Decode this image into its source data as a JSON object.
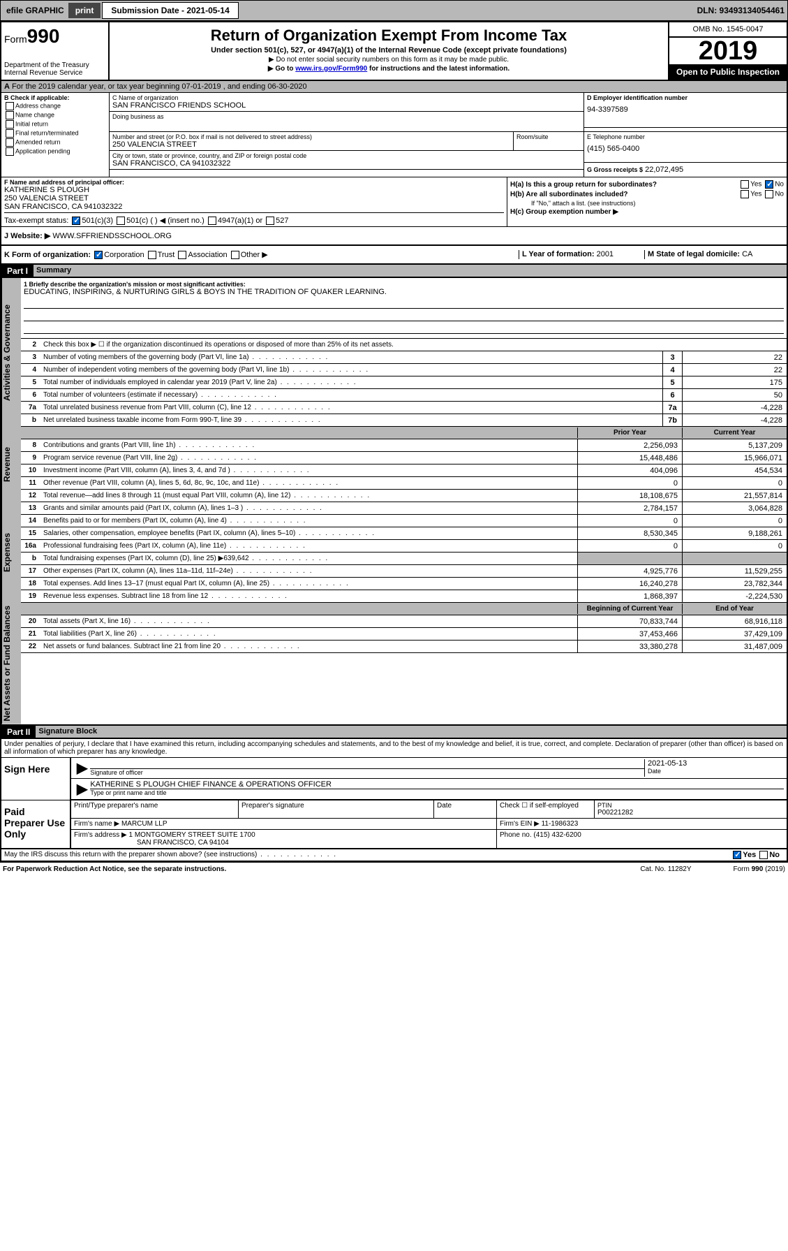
{
  "topbar": {
    "efile": "efile GRAPHIC",
    "print": "print",
    "subdate_label": "Submission Date - 2021-05-14",
    "dln": "DLN: 93493134054461"
  },
  "header": {
    "form_prefix": "Form",
    "form_number": "990",
    "dept": "Department of the Treasury",
    "irs": "Internal Revenue Service",
    "title": "Return of Organization Exempt From Income Tax",
    "subtitle": "Under section 501(c), 527, or 4947(a)(1) of the Internal Revenue Code (except private foundations)",
    "note1": "▶ Do not enter social security numbers on this form as it may be made public.",
    "note2_pre": "▶ Go to ",
    "note2_link": "www.irs.gov/Form990",
    "note2_post": " for instructions and the latest information.",
    "omb": "OMB No. 1545-0047",
    "year": "2019",
    "open": "Open to Public Inspection"
  },
  "taxyear": "For the 2019 calendar year, or tax year beginning 07-01-2019    , and ending 06-30-2020",
  "sectB": {
    "label": "B Check if applicable:",
    "items": [
      "Address change",
      "Name change",
      "Initial return",
      "Final return/terminated",
      "Amended return",
      "Application pending"
    ]
  },
  "sectC": {
    "name_label": "C Name of organization",
    "name": "SAN FRANCISCO FRIENDS SCHOOL",
    "dba_label": "Doing business as",
    "street_label": "Number and street (or P.O. box if mail is not delivered to street address)",
    "room_label": "Room/suite",
    "street": "250 VALENCIA STREET",
    "city_label": "City or town, state or province, country, and ZIP or foreign postal code",
    "city": "SAN FRANCISCO, CA  941032322"
  },
  "sectD": {
    "label": "D Employer identification number",
    "ein": "94-3397589"
  },
  "sectE": {
    "label": "E Telephone number",
    "tel": "(415) 565-0400"
  },
  "sectG": {
    "label": "G Gross receipts $",
    "amt": "22,072,495"
  },
  "sectF": {
    "label": "F  Name and address of principal officer:",
    "name": "KATHERINE S PLOUGH",
    "street": "250 VALENCIA STREET",
    "city": "SAN FRANCISCO, CA  941032322"
  },
  "sectH": {
    "a": "H(a)  Is this a group return for subordinates?",
    "b": "H(b)  Are all subordinates included?",
    "b_note": "If \"No,\" attach a list. (see instructions)",
    "c": "H(c)  Group exemption number ▶"
  },
  "sectI": {
    "label": "Tax-exempt status:",
    "opts": [
      "501(c)(3)",
      "501(c) (   ) ◀ (insert no.)",
      "4947(a)(1) or",
      "527"
    ]
  },
  "sectJ": {
    "label": "J    Website: ▶",
    "url": "WWW.SFFRIENDSSCHOOL.ORG"
  },
  "sectK": {
    "label": "K Form of organization:",
    "opts": [
      "Corporation",
      "Trust",
      "Association",
      "Other ▶"
    ]
  },
  "sectL": {
    "label": "L Year of formation:",
    "val": "2001"
  },
  "sectM": {
    "label": "M State of legal domicile:",
    "val": "CA"
  },
  "part1": {
    "header": "Part I",
    "title": "Summary",
    "q1": "1  Briefly describe the organization's mission or most significant activities:",
    "mission": "EDUCATING, INSPIRING, & NURTURING GIRLS & BOYS IN THE TRADITION OF QUAKER LEARNING.",
    "q2": "Check this box ▶ ☐  if the organization discontinued its operations or disposed of more than 25% of its net assets.",
    "lines_gov": [
      {
        "n": "3",
        "t": "Number of voting members of the governing body (Part VI, line 1a)",
        "box": "3",
        "v": "22"
      },
      {
        "n": "4",
        "t": "Number of independent voting members of the governing body (Part VI, line 1b)",
        "box": "4",
        "v": "22"
      },
      {
        "n": "5",
        "t": "Total number of individuals employed in calendar year 2019 (Part V, line 2a)",
        "box": "5",
        "v": "175"
      },
      {
        "n": "6",
        "t": "Total number of volunteers (estimate if necessary)",
        "box": "6",
        "v": "50"
      },
      {
        "n": "7a",
        "t": "Total unrelated business revenue from Part VIII, column (C), line 12",
        "box": "7a",
        "v": "-4,228"
      },
      {
        "n": "b",
        "t": "Net unrelated business taxable income from Form 990-T, line 39",
        "box": "7b",
        "v": "-4,228"
      }
    ],
    "col_prior": "Prior Year",
    "col_current": "Current Year",
    "lines_rev": [
      {
        "n": "8",
        "t": "Contributions and grants (Part VIII, line 1h)",
        "p": "2,256,093",
        "c": "5,137,209"
      },
      {
        "n": "9",
        "t": "Program service revenue (Part VIII, line 2g)",
        "p": "15,448,486",
        "c": "15,966,071"
      },
      {
        "n": "10",
        "t": "Investment income (Part VIII, column (A), lines 3, 4, and 7d )",
        "p": "404,096",
        "c": "454,534"
      },
      {
        "n": "11",
        "t": "Other revenue (Part VIII, column (A), lines 5, 6d, 8c, 9c, 10c, and 11e)",
        "p": "0",
        "c": "0"
      },
      {
        "n": "12",
        "t": "Total revenue—add lines 8 through 11 (must equal Part VIII, column (A), line 12)",
        "p": "18,108,675",
        "c": "21,557,814"
      }
    ],
    "lines_exp": [
      {
        "n": "13",
        "t": "Grants and similar amounts paid (Part IX, column (A), lines 1–3 )",
        "p": "2,784,157",
        "c": "3,064,828"
      },
      {
        "n": "14",
        "t": "Benefits paid to or for members (Part IX, column (A), line 4)",
        "p": "0",
        "c": "0"
      },
      {
        "n": "15",
        "t": "Salaries, other compensation, employee benefits (Part IX, column (A), lines 5–10)",
        "p": "8,530,345",
        "c": "9,188,261"
      },
      {
        "n": "16a",
        "t": "Professional fundraising fees (Part IX, column (A), line 11e)",
        "p": "0",
        "c": "0"
      },
      {
        "n": "b",
        "t": "Total fundraising expenses (Part IX, column (D), line 25) ▶639,642",
        "p": "",
        "c": "",
        "grey": true
      },
      {
        "n": "17",
        "t": "Other expenses (Part IX, column (A), lines 11a–11d, 11f–24e)",
        "p": "4,925,776",
        "c": "11,529,255"
      },
      {
        "n": "18",
        "t": "Total expenses. Add lines 13–17 (must equal Part IX, column (A), line 25)",
        "p": "16,240,278",
        "c": "23,782,344"
      },
      {
        "n": "19",
        "t": "Revenue less expenses. Subtract line 18 from line 12",
        "p": "1,868,397",
        "c": "-2,224,530"
      }
    ],
    "col_begin": "Beginning of Current Year",
    "col_end": "End of Year",
    "lines_net": [
      {
        "n": "20",
        "t": "Total assets (Part X, line 16)",
        "p": "70,833,744",
        "c": "68,916,118"
      },
      {
        "n": "21",
        "t": "Total liabilities (Part X, line 26)",
        "p": "37,453,466",
        "c": "37,429,109"
      },
      {
        "n": "22",
        "t": "Net assets or fund balances. Subtract line 21 from line 20",
        "p": "33,380,278",
        "c": "31,487,009"
      }
    ],
    "vtab_gov": "Activities & Governance",
    "vtab_rev": "Revenue",
    "vtab_exp": "Expenses",
    "vtab_net": "Net Assets or Fund Balances"
  },
  "part2": {
    "header": "Part II",
    "title": "Signature Block",
    "decl": "Under penalties of perjury, I declare that I have examined this return, including accompanying schedules and statements, and to the best of my knowledge and belief, it is true, correct, and complete. Declaration of preparer (other than officer) is based on all information of which preparer has any knowledge.",
    "sign_here": "Sign Here",
    "sig_officer": "Signature of officer",
    "sig_date": "2021-05-13",
    "date_label": "Date",
    "officer_name": "KATHERINE S PLOUGH  CHIEF FINANCE & OPERATIONS OFFICER",
    "type_name": "Type or print name and title",
    "paid": "Paid Preparer Use Only",
    "prep_name_label": "Print/Type preparer's name",
    "prep_sig_label": "Preparer's signature",
    "prep_date_label": "Date",
    "check_self": "Check ☐ if self-employed",
    "ptin_label": "PTIN",
    "ptin": "P00221282",
    "firm_name_label": "Firm's name    ▶",
    "firm_name": "MARCUM LLP",
    "firm_ein_label": "Firm's EIN ▶",
    "firm_ein": "11-1986323",
    "firm_addr_label": "Firm's address ▶",
    "firm_addr1": "1 MONTGOMERY STREET SUITE 1700",
    "firm_addr2": "SAN FRANCISCO, CA  94104",
    "firm_phone_label": "Phone no.",
    "firm_phone": "(415) 432-6200",
    "discuss": "May the IRS discuss this return with the preparer shown above? (see instructions)",
    "paperwork": "For Paperwork Reduction Act Notice, see the separate instructions.",
    "cat": "Cat. No. 11282Y",
    "formfoot": "Form 990 (2019)"
  }
}
